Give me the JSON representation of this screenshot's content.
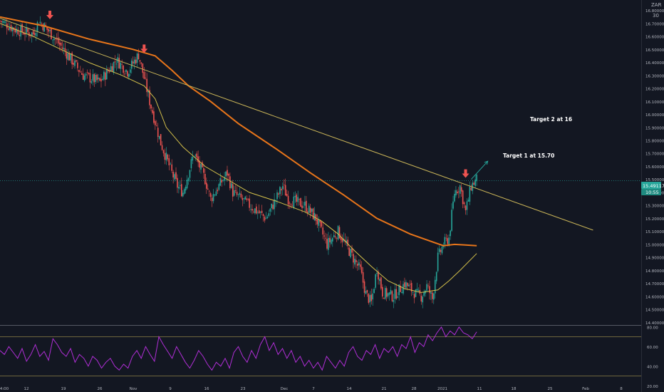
{
  "header": {
    "currency_label": "ZAR",
    "interval_label": "30"
  },
  "annotations": {
    "target1": "Target 1 at 15.70",
    "target2": "Target 2 at 16"
  },
  "price_tags": {
    "last": "15.491172",
    "countdown": "10:55"
  },
  "colors": {
    "background": "#131722",
    "up": "#26a69a",
    "down": "#ef5350",
    "ema_long": "#e8751a",
    "ema_short": "#d4c04a",
    "trendline": "#c9b458",
    "rsi": "#b02ed6",
    "arrow_marker": "#ef5350",
    "target_arrow": "#26a69a",
    "axis_text": "#b2b5be"
  },
  "chart_data": [
    {
      "type": "candlestick",
      "title": "",
      "x_ticks": [
        "4:00",
        "12",
        "19",
        "26",
        "Nov",
        "9",
        "16",
        "23",
        "Dec",
        "7",
        "14",
        "21",
        "28",
        "2021",
        "11",
        "18",
        "25",
        "Feb",
        "8"
      ],
      "y_ticks": [
        "16.80000",
        "16.70000",
        "16.60000",
        "16.50000",
        "16.40000",
        "16.30000",
        "16.20000",
        "16.10000",
        "16.00000",
        "15.90000",
        "15.80000",
        "15.70000",
        "15.60000",
        "15.50000",
        "15.40000",
        "15.30000",
        "15.20000",
        "15.10000",
        "15.00000",
        "14.90000",
        "14.80000",
        "14.70000",
        "14.60000",
        "14.50000",
        "14.40000"
      ],
      "ylim": [
        14.38,
        16.88
      ],
      "close_path": [
        [
          0,
          16.72
        ],
        [
          3,
          16.65
        ],
        [
          6,
          16.62
        ],
        [
          7,
          16.72
        ],
        [
          9,
          16.63
        ],
        [
          12,
          16.47
        ],
        [
          15,
          16.3
        ],
        [
          18,
          16.25
        ],
        [
          21,
          16.42
        ],
        [
          23,
          16.33
        ],
        [
          25,
          16.46
        ],
        [
          27,
          16.1
        ],
        [
          29,
          15.78
        ],
        [
          31,
          15.55
        ],
        [
          32,
          15.45
        ],
        [
          33,
          15.4
        ],
        [
          35,
          15.7
        ],
        [
          37,
          15.5
        ],
        [
          38,
          15.35
        ],
        [
          41,
          15.55
        ],
        [
          42,
          15.4
        ],
        [
          45,
          15.3
        ],
        [
          48,
          15.2
        ],
        [
          51,
          15.45
        ],
        [
          52,
          15.35
        ],
        [
          55,
          15.3
        ],
        [
          57,
          15.2
        ],
        [
          59,
          15.0
        ],
        [
          61,
          15.1
        ],
        [
          63,
          14.95
        ],
        [
          65,
          14.8
        ],
        [
          66,
          14.62
        ],
        [
          67,
          14.55
        ],
        [
          68,
          14.82
        ],
        [
          69,
          14.63
        ],
        [
          71,
          14.6
        ],
        [
          73,
          14.7
        ],
        [
          75,
          14.62
        ],
        [
          76,
          14.6
        ],
        [
          77,
          14.68
        ],
        [
          78,
          14.58
        ],
        [
          79,
          14.9
        ],
        [
          80,
          15.0
        ],
        [
          81,
          15.05
        ],
        [
          82,
          15.4
        ],
        [
          83,
          15.45
        ],
        [
          84,
          15.25
        ],
        [
          85,
          15.45
        ],
        [
          86,
          15.5
        ]
      ],
      "ema_long": [
        [
          0,
          16.75
        ],
        [
          8,
          16.68
        ],
        [
          16,
          16.58
        ],
        [
          24,
          16.5
        ],
        [
          28,
          16.45
        ],
        [
          31,
          16.34
        ],
        [
          34,
          16.22
        ],
        [
          38,
          16.1
        ],
        [
          43,
          15.93
        ],
        [
          50,
          15.73
        ],
        [
          56,
          15.55
        ],
        [
          62,
          15.38
        ],
        [
          68,
          15.2
        ],
        [
          74,
          15.08
        ],
        [
          78,
          15.02
        ],
        [
          80,
          14.99
        ],
        [
          82,
          15.0
        ],
        [
          84,
          14.995
        ],
        [
          86,
          14.99
        ]
      ],
      "ema_short": [
        [
          0,
          16.7
        ],
        [
          6,
          16.6
        ],
        [
          10,
          16.52
        ],
        [
          16,
          16.4
        ],
        [
          22,
          16.3
        ],
        [
          26,
          16.22
        ],
        [
          28,
          16.12
        ],
        [
          30,
          15.9
        ],
        [
          33,
          15.75
        ],
        [
          37,
          15.6
        ],
        [
          41,
          15.5
        ],
        [
          45,
          15.4
        ],
        [
          50,
          15.33
        ],
        [
          55,
          15.25
        ],
        [
          58,
          15.18
        ],
        [
          61,
          15.08
        ],
        [
          64,
          14.95
        ],
        [
          67,
          14.83
        ],
        [
          70,
          14.72
        ],
        [
          73,
          14.66
        ],
        [
          76,
          14.63
        ],
        [
          79,
          14.65
        ],
        [
          81,
          14.72
        ],
        [
          83,
          14.8
        ],
        [
          86,
          14.93
        ]
      ],
      "trendline": {
        "start": [
          0,
          16.74
        ],
        "end": [
          107,
          15.11
        ]
      },
      "sell_markers": [
        [
          9,
          16.71
        ],
        [
          26,
          16.45
        ],
        [
          84,
          15.49
        ]
      ],
      "target_arrow": {
        "from": [
          85,
          15.5
        ],
        "to": [
          88,
          15.64
        ]
      },
      "last_price": 15.491172
    },
    {
      "type": "line",
      "title": "",
      "y_ticks": [
        "80.00",
        "60.00",
        "40.00",
        "20.00"
      ],
      "ylim": [
        18,
        82
      ],
      "bands": [
        70,
        30
      ],
      "series": [
        {
          "values": [
            56,
            52,
            60,
            54,
            48,
            58,
            45,
            52,
            62,
            50,
            55,
            46,
            68,
            62,
            54,
            50,
            58,
            44,
            52,
            48,
            40,
            50,
            46,
            38,
            44,
            48,
            40,
            36,
            42,
            38,
            50,
            56,
            48,
            60,
            52,
            45,
            70,
            62,
            55,
            48,
            60,
            52,
            44,
            38,
            46,
            56,
            50,
            42,
            36,
            44,
            40,
            48,
            38,
            54,
            60,
            50,
            44,
            56,
            48,
            62,
            70,
            56,
            64,
            52,
            58,
            48,
            56,
            44,
            50,
            40,
            46,
            38,
            44,
            36,
            50,
            44,
            38,
            46,
            40,
            54,
            60,
            50,
            46,
            56,
            52,
            62,
            48,
            58,
            54,
            60,
            50,
            62,
            58,
            70,
            54,
            64,
            60,
            72,
            66,
            74,
            80,
            70,
            76,
            72,
            80,
            74,
            72,
            68,
            75
          ]
        }
      ]
    }
  ]
}
